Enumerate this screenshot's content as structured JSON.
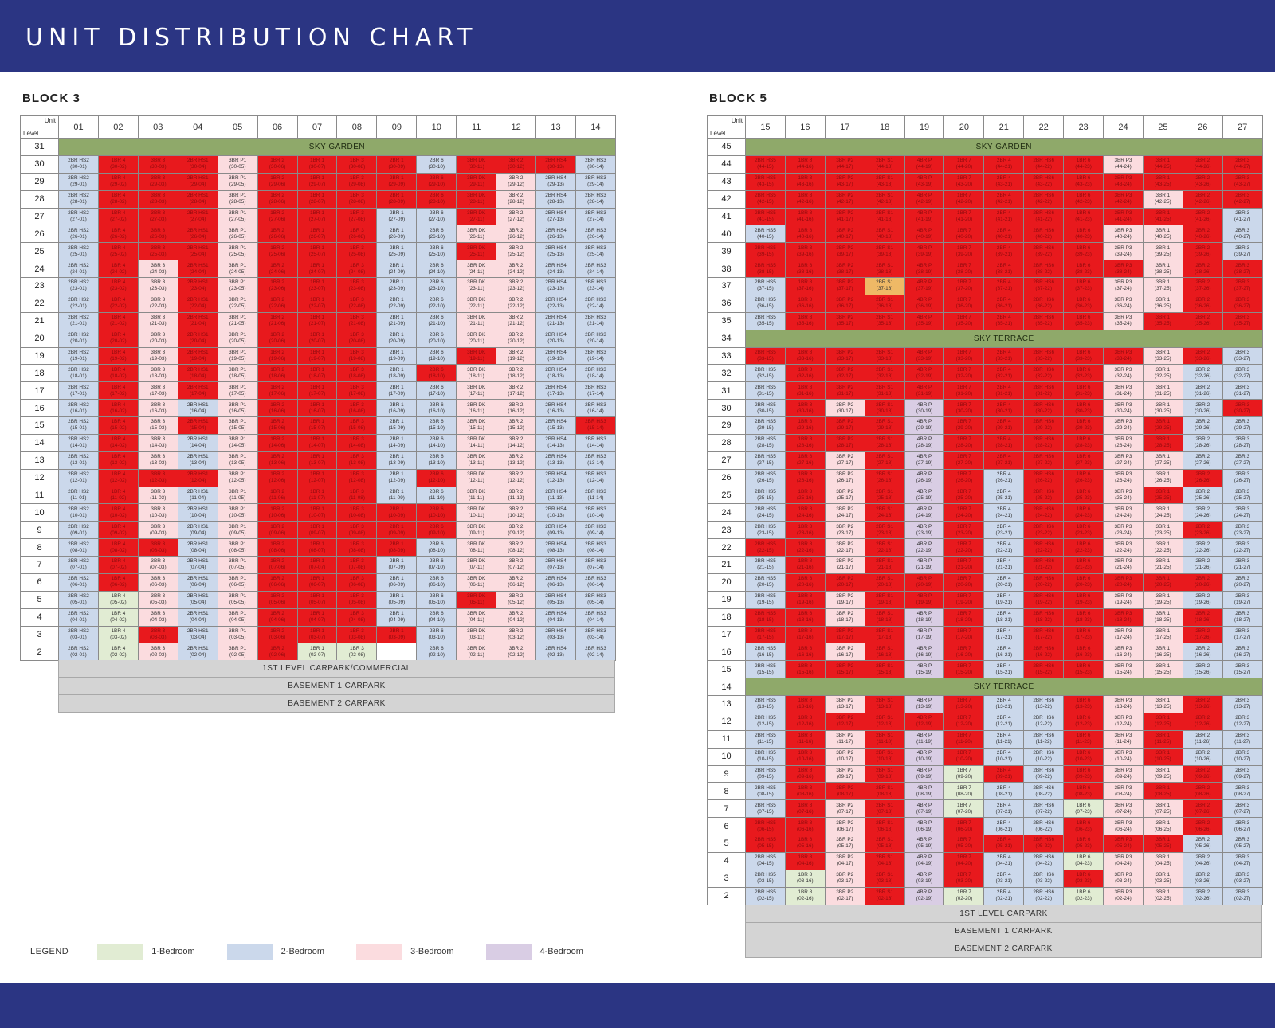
{
  "page": {
    "title": "UNIT DISTRIBUTION CHART"
  },
  "legend": {
    "label": "LEGEND",
    "items": [
      {
        "label": "1-Bedroom",
        "color": "#e1ecd3"
      },
      {
        "label": "2-Bedroom",
        "color": "#cbd8eb"
      },
      {
        "label": "3-Bedroom",
        "color": "#fbdcdf"
      },
      {
        "label": "4-Bedroom",
        "color": "#d9cde4"
      }
    ]
  },
  "status_colors": {
    "sold": "#e8191d",
    "reserved": "#efb966",
    "sky_garden": "#8fa96a"
  },
  "block3": {
    "title": "BLOCK 3",
    "corner_unit": "Unit",
    "corner_level": "Level",
    "units": [
      "01",
      "02",
      "03",
      "04",
      "05",
      "06",
      "07",
      "08",
      "09",
      "10",
      "11",
      "12",
      "13",
      "14"
    ],
    "sky_garden_level": "31",
    "sky_garden_label": "SKY GARDEN",
    "types": [
      {
        "code": "2BR HS2",
        "type": 2
      },
      {
        "code": "1BR 4",
        "type": 1
      },
      {
        "code": "3BR 3",
        "type": 3
      },
      {
        "code": "2BR HS1",
        "type": 2
      },
      {
        "code": "3BR P1",
        "type": 3
      },
      {
        "code": "1BR 2",
        "type": 1
      },
      {
        "code": "1BR 1",
        "type": 1
      },
      {
        "code": "1BR 3",
        "type": 1
      },
      {
        "code": "2BR 1",
        "type": 2
      },
      {
        "code": "2BR 6",
        "type": 2
      },
      {
        "code": "3BR DK",
        "type": 3
      },
      {
        "code": "3BR 2",
        "type": 3
      },
      {
        "code": "2BR HS4",
        "type": 2
      },
      {
        "code": "2BR HS3",
        "type": 2
      }
    ],
    "sold": {
      "30": [
        "02",
        "03",
        "04",
        "06",
        "07",
        "08",
        "09",
        "11",
        "12",
        "13"
      ],
      "29": [
        "02",
        "03",
        "04",
        "06",
        "07",
        "08",
        "09",
        "10",
        "11"
      ],
      "28": [
        "02",
        "03",
        "04",
        "06",
        "07",
        "08",
        "09",
        "10",
        "11"
      ],
      "27": [
        "02",
        "03",
        "04",
        "06",
        "07",
        "08",
        "11"
      ],
      "26": [
        "02",
        "03",
        "04",
        "06",
        "07",
        "08"
      ],
      "25": [
        "02",
        "03",
        "04",
        "06",
        "07",
        "08",
        "11"
      ],
      "24": [
        "02",
        "04",
        "06",
        "07",
        "08"
      ],
      "23": [
        "02",
        "04",
        "06",
        "07",
        "08"
      ],
      "22": [
        "02",
        "04",
        "06",
        "07",
        "08"
      ],
      "21": [
        "02",
        "04",
        "06",
        "07",
        "08"
      ],
      "20": [
        "02",
        "04",
        "06",
        "07",
        "08"
      ],
      "19": [
        "02",
        "04",
        "06",
        "07",
        "08",
        "11"
      ],
      "18": [
        "02",
        "04",
        "06",
        "07",
        "08",
        "10"
      ],
      "17": [
        "02",
        "04",
        "06",
        "07",
        "08"
      ],
      "16": [
        "02",
        "06",
        "07",
        "08"
      ],
      "15": [
        "02",
        "04",
        "06",
        "07",
        "08",
        "14"
      ],
      "14": [
        "02",
        "06",
        "07",
        "08"
      ],
      "13": [
        "02",
        "06",
        "07",
        "08"
      ],
      "12": [
        "02",
        "03",
        "04",
        "06",
        "07",
        "08",
        "10"
      ],
      "11": [
        "02",
        "06",
        "07",
        "08"
      ],
      "10": [
        "02",
        "06",
        "07",
        "08",
        "09",
        "10"
      ],
      "9": [
        "02",
        "06",
        "07",
        "08",
        "09",
        "10"
      ],
      "8": [
        "02",
        "03",
        "06",
        "07",
        "08",
        "09"
      ],
      "7": [
        "02",
        "06",
        "07",
        "08"
      ],
      "6": [
        "02",
        "06",
        "07",
        "08"
      ],
      "5": [
        "06",
        "07",
        "08",
        "11"
      ],
      "4": [
        "06",
        "07",
        "08"
      ],
      "3": [
        "03",
        "06",
        "07",
        "08",
        "09"
      ],
      "2": [
        "06"
      ]
    },
    "overrides": {
      "2-07": {
        "type": 1
      },
      "2-08": {
        "type": 1
      },
      "2-09": {
        "empty": true
      }
    },
    "carpark": [
      "1ST LEVEL CARPARK/COMMERCIAL",
      "BASEMENT 1 CARPARK",
      "BASEMENT 2 CARPARK"
    ]
  },
  "block5": {
    "title": "BLOCK 5",
    "corner_unit": "Unit",
    "corner_level": "Level",
    "units": [
      "15",
      "16",
      "17",
      "18",
      "19",
      "20",
      "21",
      "22",
      "23",
      "24",
      "25",
      "26",
      "27"
    ],
    "bands": {
      "45": "SKY GARDEN",
      "34": "SKY TERRACE",
      "14": "SKY TERRACE"
    },
    "levels": [
      "45",
      "44",
      "43",
      "42",
      "41",
      "40",
      "39",
      "38",
      "37",
      "36",
      "35",
      "34",
      "33",
      "32",
      "31",
      "30",
      "29",
      "28",
      "27",
      "26",
      "25",
      "24",
      "23",
      "22",
      "21",
      "20",
      "19",
      "18",
      "17",
      "16",
      "15",
      "14",
      "13",
      "12",
      "11",
      "10",
      "9",
      "8",
      "7",
      "6",
      "5",
      "4",
      "3",
      "2"
    ],
    "types": [
      {
        "code": "2BR HS5",
        "type": 2
      },
      {
        "code": "1BR 8",
        "type": 1
      },
      {
        "code": "3BR P2",
        "type": 3
      },
      {
        "code": "2BR S1",
        "type": 2
      },
      {
        "code": "4BR P",
        "type": 4
      },
      {
        "code": "1BR 7",
        "type": 1
      },
      {
        "code": "2BR 4",
        "type": 2
      },
      {
        "code": "2BR HS6",
        "type": 2
      },
      {
        "code": "1BR 6",
        "type": 1
      },
      {
        "code": "3BR P3",
        "type": 3
      },
      {
        "code": "3BR 1",
        "type": 3
      },
      {
        "code": "2BR 2",
        "type": 2
      },
      {
        "code": "2BR 3",
        "type": 2
      }
    ],
    "sold": {
      "44": [
        "15",
        "16",
        "17",
        "18",
        "19",
        "20",
        "21",
        "22",
        "23",
        "25",
        "26",
        "27"
      ],
      "43": [
        "15",
        "16",
        "17",
        "18",
        "19",
        "20",
        "21",
        "22",
        "23",
        "24",
        "25",
        "26",
        "27"
      ],
      "42": [
        "15",
        "16",
        "17",
        "18",
        "19",
        "20",
        "21",
        "22",
        "23",
        "24",
        "26",
        "27"
      ],
      "41": [
        "15",
        "16",
        "17",
        "18",
        "19",
        "20",
        "21",
        "22",
        "23",
        "24",
        "25",
        "26"
      ],
      "40": [
        "16",
        "17",
        "18",
        "19",
        "20",
        "21",
        "22",
        "23",
        "26"
      ],
      "39": [
        "15",
        "16",
        "17",
        "18",
        "19",
        "20",
        "21",
        "22",
        "23",
        "26"
      ],
      "38": [
        "15",
        "16",
        "17",
        "18",
        "19",
        "20",
        "21",
        "22",
        "23",
        "24",
        "26",
        "27"
      ],
      "37": [
        "16",
        "17",
        "19",
        "20",
        "21",
        "22",
        "23",
        "26",
        "27"
      ],
      "36": [
        "16",
        "17",
        "18",
        "19",
        "20",
        "21",
        "22",
        "23",
        "26",
        "27"
      ],
      "35": [
        "16",
        "17",
        "18",
        "19",
        "20",
        "21",
        "22",
        "23",
        "25",
        "26",
        "27"
      ],
      "33": [
        "15",
        "16",
        "17",
        "18",
        "19",
        "20",
        "21",
        "22",
        "23",
        "24",
        "26"
      ],
      "32": [
        "16",
        "17",
        "18",
        "19",
        "20",
        "21",
        "22",
        "23"
      ],
      "31": [
        "16",
        "17",
        "18",
        "19",
        "20",
        "21",
        "22",
        "23"
      ],
      "30": [
        "16",
        "18",
        "20",
        "21",
        "22",
        "23",
        "27"
      ],
      "29": [
        "16",
        "17",
        "18",
        "20",
        "21",
        "22",
        "23",
        "25"
      ],
      "28": [
        "16",
        "17",
        "18",
        "20",
        "21",
        "22",
        "23",
        "25"
      ],
      "27": [
        "16",
        "18",
        "20",
        "21",
        "22",
        "23"
      ],
      "26": [
        "16",
        "18",
        "20",
        "22",
        "23",
        "26"
      ],
      "25": [
        "16",
        "18",
        "20",
        "22",
        "23",
        "25"
      ],
      "24": [
        "16",
        "18",
        "20",
        "22",
        "23"
      ],
      "23": [
        "16",
        "18",
        "20",
        "22",
        "23",
        "26"
      ],
      "22": [
        "15",
        "16",
        "18",
        "20",
        "22",
        "23"
      ],
      "21": [
        "16",
        "18",
        "20",
        "22",
        "23"
      ],
      "20": [
        "16",
        "17",
        "18",
        "19",
        "20",
        "22",
        "23",
        "24",
        "25",
        "26"
      ],
      "19": [
        "16",
        "18",
        "19",
        "20",
        "22",
        "23"
      ],
      "18": [
        "15",
        "16",
        "18",
        "20",
        "22",
        "23",
        "24",
        "26"
      ],
      "17": [
        "15",
        "16",
        "17",
        "18",
        "20",
        "22",
        "23",
        "26"
      ],
      "16": [
        "16",
        "18",
        "20",
        "22",
        "23"
      ],
      "15": [
        "16",
        "17",
        "18",
        "20",
        "22",
        "23"
      ],
      "13": [
        "16",
        "18",
        "20",
        "23",
        "26"
      ],
      "12": [
        "16",
        "17",
        "18",
        "19",
        "20",
        "23",
        "25",
        "26"
      ],
      "11": [
        "16",
        "18",
        "20",
        "23",
        "25"
      ],
      "10": [
        "16",
        "18",
        "20",
        "23",
        "25"
      ],
      "9": [
        "16",
        "18",
        "21",
        "23",
        "26"
      ],
      "8": [
        "16",
        "17",
        "18",
        "23",
        "25",
        "26"
      ],
      "7": [
        "16",
        "18",
        "26"
      ],
      "6": [
        "15",
        "16",
        "18",
        "20",
        "23",
        "26"
      ],
      "5": [
        "15",
        "16",
        "18",
        "20",
        "21",
        "22",
        "23",
        "24",
        "25"
      ],
      "4": [
        "16",
        "18",
        "20"
      ],
      "3": [
        "18",
        "20",
        "23"
      ],
      "2": [
        "18"
      ]
    },
    "overrides": {
      "37-18": {
        "reserved": true
      }
    },
    "carpark": [
      "1ST LEVEL CARPARK",
      "BASEMENT 1 CARPARK",
      "BASEMENT 2 CARPARK"
    ]
  }
}
